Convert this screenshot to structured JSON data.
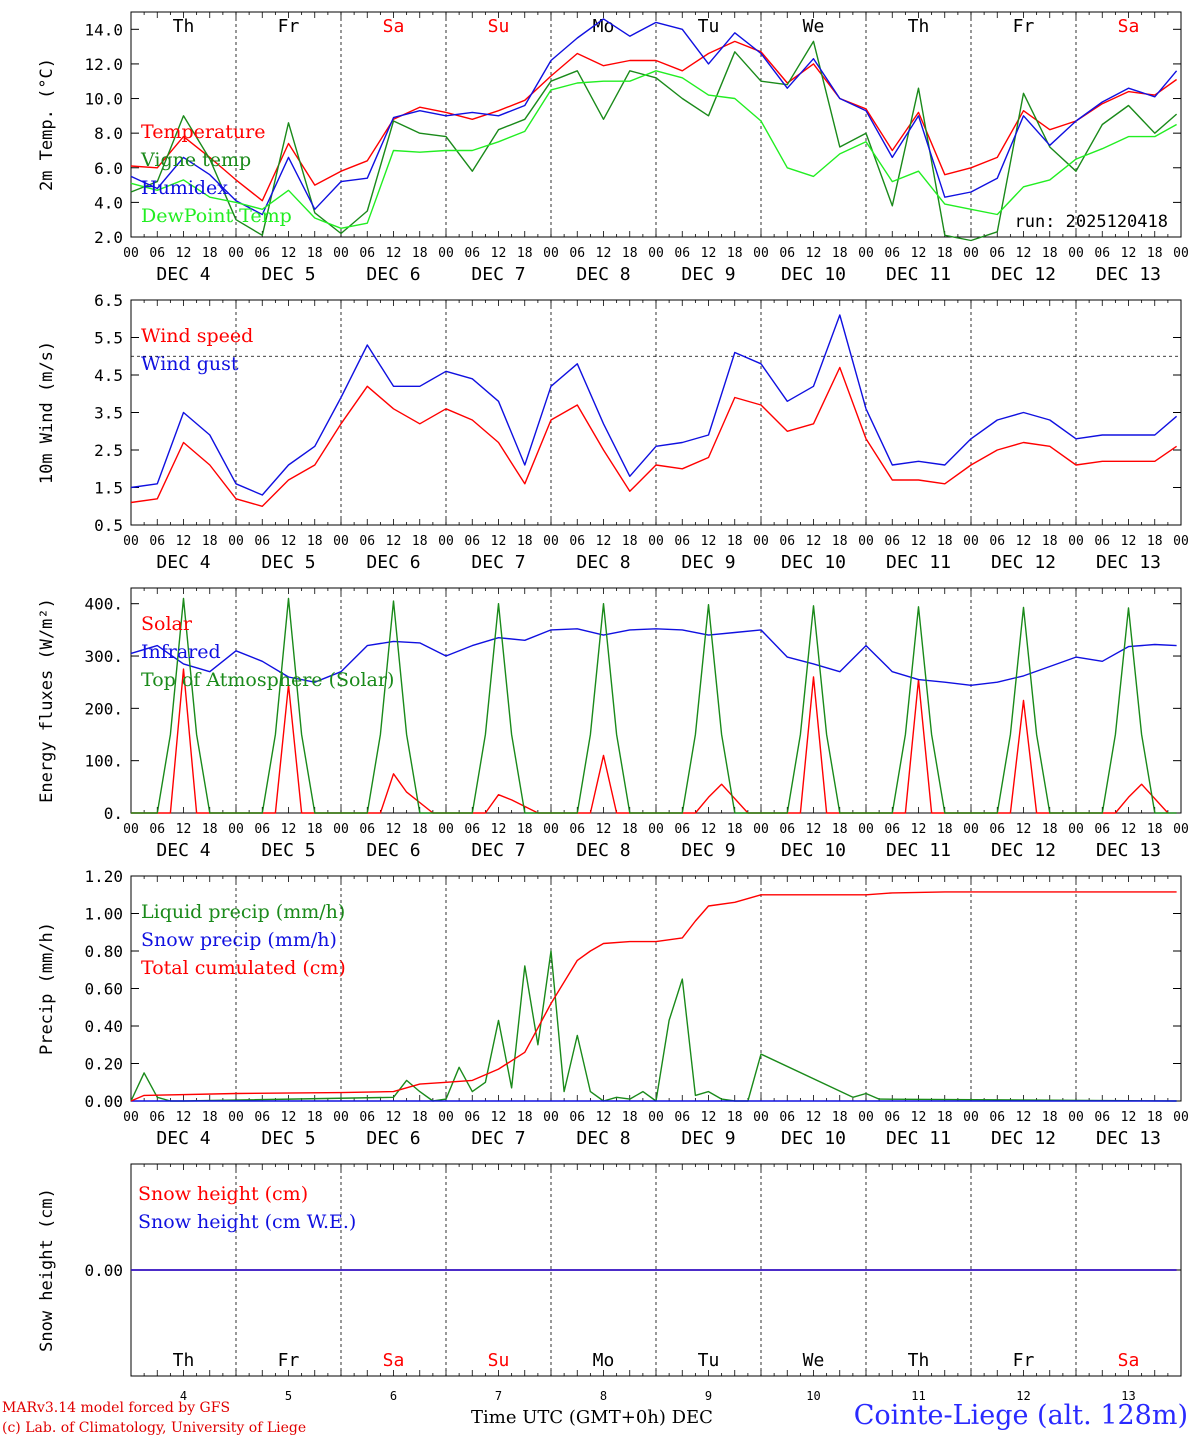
{
  "chart_data": [
    {
      "type": "line",
      "ylabel": "2m Temp. (°C)",
      "ylim": [
        2,
        15
      ],
      "yticks": [
        "2.0",
        "4.0",
        "6.0",
        "8.0",
        "10.0",
        "12.0",
        "14.0"
      ],
      "x_day_labels": [
        "DEC  4",
        "DEC  5",
        "DEC  6",
        "DEC  7",
        "DEC  8",
        "DEC  9",
        "DEC 10",
        "DEC 11",
        "DEC 12",
        "DEC 13"
      ],
      "x_hour_labels": [
        "00",
        "06",
        "12",
        "18"
      ],
      "weekday_labels": [
        "Th",
        "Fr",
        "Sa",
        "Su",
        "Mo",
        "Tu",
        "We",
        "Th",
        "Fr",
        "Sa"
      ],
      "weekend_days": [
        2,
        3,
        9
      ],
      "annotation": "run: 2025120418",
      "series": [
        {
          "name": "Temperature",
          "color": "#ff0000",
          "x": [
            0,
            6,
            12,
            18,
            24,
            30,
            36,
            42,
            48,
            54,
            60,
            66,
            72,
            78,
            84,
            90,
            96,
            102,
            108,
            114,
            120,
            126,
            132,
            138,
            144,
            150,
            156,
            162,
            168,
            174,
            180,
            186,
            192,
            198,
            204,
            210,
            216,
            222,
            228,
            234,
            239
          ],
          "values": [
            6.1,
            6.0,
            7.8,
            6.6,
            5.3,
            4.1,
            7.4,
            5.0,
            5.8,
            6.4,
            8.8,
            9.5,
            9.2,
            8.8,
            9.3,
            9.9,
            11.3,
            12.6,
            11.9,
            12.2,
            12.2,
            11.6,
            12.6,
            13.3,
            12.7,
            10.9,
            12.0,
            10.0,
            9.4,
            7.0,
            9.2,
            5.6,
            6.0,
            6.6,
            9.3,
            8.2,
            8.7,
            9.7,
            10.4,
            10.2,
            11.1
          ]
        },
        {
          "name": "Vigne temp",
          "color": "#1a8a1a",
          "x": [
            0,
            6,
            12,
            18,
            24,
            30,
            36,
            42,
            48,
            54,
            60,
            66,
            72,
            78,
            84,
            90,
            96,
            102,
            108,
            114,
            120,
            126,
            132,
            138,
            144,
            150,
            156,
            162,
            168,
            174,
            180,
            186,
            192,
            198,
            204,
            210,
            216,
            222,
            228,
            234,
            239
          ],
          "values": [
            4.6,
            5.2,
            9.0,
            6.5,
            3.0,
            2.1,
            8.6,
            3.4,
            2.2,
            3.5,
            8.7,
            8.0,
            7.8,
            5.8,
            8.2,
            8.8,
            11.0,
            11.6,
            8.8,
            11.6,
            11.2,
            10.0,
            9.0,
            12.7,
            11.0,
            10.8,
            13.3,
            7.2,
            8.0,
            3.8,
            10.6,
            2.1,
            1.8,
            2.3,
            10.3,
            7.2,
            5.8,
            8.5,
            9.6,
            8.0,
            9.1
          ]
        },
        {
          "name": "Humidex",
          "color": "#1010e0",
          "x": [
            0,
            6,
            12,
            18,
            24,
            30,
            36,
            42,
            48,
            54,
            60,
            66,
            72,
            78,
            84,
            90,
            96,
            102,
            108,
            114,
            120,
            126,
            132,
            138,
            144,
            150,
            156,
            162,
            168,
            174,
            180,
            186,
            192,
            198,
            204,
            210,
            216,
            222,
            228,
            234,
            239
          ],
          "values": [
            5.5,
            4.8,
            6.6,
            5.6,
            4.1,
            3.3,
            6.6,
            3.6,
            5.2,
            5.4,
            8.9,
            9.3,
            9.0,
            9.2,
            9.0,
            9.6,
            12.2,
            13.5,
            14.6,
            13.6,
            14.4,
            14.0,
            12.0,
            13.8,
            12.6,
            10.6,
            12.3,
            10.0,
            9.3,
            6.6,
            9.0,
            4.3,
            4.6,
            5.4,
            9.0,
            7.3,
            8.7,
            9.8,
            10.6,
            10.1,
            11.6
          ]
        },
        {
          "name": "DewPoint Temp",
          "color": "#22ee22",
          "x": [
            0,
            6,
            12,
            18,
            24,
            30,
            36,
            42,
            48,
            54,
            60,
            66,
            72,
            78,
            84,
            90,
            96,
            102,
            108,
            114,
            120,
            126,
            132,
            138,
            144,
            150,
            156,
            162,
            168,
            174,
            180,
            186,
            192,
            198,
            204,
            210,
            216,
            222,
            228,
            234,
            239
          ],
          "values": [
            5.1,
            4.7,
            5.3,
            4.3,
            4.0,
            3.6,
            4.7,
            3.1,
            2.5,
            2.8,
            7.0,
            6.9,
            7.0,
            7.0,
            7.5,
            8.1,
            10.5,
            10.9,
            11.0,
            11.0,
            11.6,
            11.2,
            10.2,
            10.0,
            8.7,
            6.0,
            5.5,
            6.8,
            7.5,
            5.2,
            5.8,
            3.9,
            3.6,
            3.3,
            4.9,
            5.3,
            6.5,
            7.1,
            7.8,
            7.8,
            8.5
          ]
        }
      ]
    },
    {
      "type": "line",
      "ylabel": "10m Wind (m/s)",
      "ylim": [
        0.5,
        6.5
      ],
      "yticks": [
        "0.5",
        "1.5",
        "2.5",
        "3.5",
        "4.5",
        "5.5",
        "6.5"
      ],
      "reference_line": 5.0,
      "series": [
        {
          "name": "Wind speed",
          "color": "#ff0000",
          "x": [
            0,
            6,
            12,
            18,
            24,
            30,
            36,
            42,
            48,
            54,
            60,
            66,
            72,
            78,
            84,
            90,
            96,
            102,
            108,
            114,
            120,
            126,
            132,
            138,
            144,
            150,
            156,
            162,
            168,
            174,
            180,
            186,
            192,
            198,
            204,
            210,
            216,
            222,
            228,
            234,
            239
          ],
          "values": [
            1.1,
            1.2,
            2.7,
            2.1,
            1.2,
            1.0,
            1.7,
            2.1,
            3.2,
            4.2,
            3.6,
            3.2,
            3.6,
            3.3,
            2.7,
            1.6,
            3.3,
            3.7,
            2.5,
            1.4,
            2.1,
            2.0,
            2.3,
            3.9,
            3.7,
            3.0,
            3.2,
            4.7,
            2.8,
            1.7,
            1.7,
            1.6,
            2.1,
            2.5,
            2.7,
            2.6,
            2.1,
            2.2,
            2.2,
            2.2,
            2.6
          ]
        },
        {
          "name": "Wind gust",
          "color": "#1010e0",
          "x": [
            0,
            6,
            12,
            18,
            24,
            30,
            36,
            42,
            48,
            54,
            60,
            66,
            72,
            78,
            84,
            90,
            96,
            102,
            108,
            114,
            120,
            126,
            132,
            138,
            144,
            150,
            156,
            162,
            168,
            174,
            180,
            186,
            192,
            198,
            204,
            210,
            216,
            222,
            228,
            234,
            239
          ],
          "values": [
            1.5,
            1.6,
            3.5,
            2.9,
            1.6,
            1.3,
            2.1,
            2.6,
            3.9,
            5.3,
            4.2,
            4.2,
            4.6,
            4.4,
            3.8,
            2.1,
            4.2,
            4.8,
            3.2,
            1.8,
            2.6,
            2.7,
            2.9,
            5.1,
            4.8,
            3.8,
            4.2,
            6.1,
            3.6,
            2.1,
            2.2,
            2.1,
            2.8,
            3.3,
            3.5,
            3.3,
            2.8,
            2.9,
            2.9,
            2.9,
            3.4
          ]
        }
      ]
    },
    {
      "type": "line",
      "ylabel": "Energy fluxes (W/m²)",
      "ylim": [
        0,
        430
      ],
      "yticks": [
        "0.",
        "100.",
        "200.",
        "300.",
        "400."
      ],
      "series": [
        {
          "name": "Solar",
          "color": "#ff0000",
          "x": [
            0,
            9,
            12,
            15,
            21,
            33,
            36,
            39,
            45,
            57,
            60,
            63,
            69,
            81,
            84,
            87,
            93,
            105,
            108,
            111,
            117,
            129,
            132,
            135,
            141,
            153,
            156,
            159,
            165,
            177,
            180,
            183,
            189,
            201,
            204,
            207,
            213,
            225,
            228,
            231,
            237
          ],
          "values": [
            0,
            0,
            275,
            0,
            0,
            0,
            245,
            0,
            0,
            0,
            75,
            40,
            0,
            0,
            35,
            25,
            0,
            0,
            110,
            0,
            0,
            0,
            30,
            55,
            0,
            0,
            260,
            0,
            0,
            0,
            255,
            0,
            0,
            0,
            215,
            0,
            0,
            0,
            30,
            55,
            0
          ]
        },
        {
          "name": "Infrared",
          "color": "#1010e0",
          "x": [
            0,
            6,
            12,
            18,
            24,
            30,
            36,
            42,
            48,
            54,
            60,
            66,
            72,
            78,
            84,
            90,
            96,
            102,
            108,
            114,
            120,
            126,
            132,
            138,
            144,
            150,
            156,
            162,
            168,
            174,
            180,
            186,
            192,
            198,
            204,
            210,
            216,
            222,
            228,
            234,
            239
          ],
          "values": [
            305,
            320,
            285,
            270,
            310,
            290,
            260,
            250,
            270,
            320,
            328,
            325,
            300,
            320,
            335,
            330,
            350,
            352,
            340,
            350,
            352,
            350,
            340,
            345,
            350,
            298,
            285,
            270,
            320,
            270,
            255,
            250,
            244,
            250,
            262,
            280,
            298,
            290,
            318,
            322,
            320
          ]
        },
        {
          "name": "Top of Atmosphere (Solar)",
          "color": "#1a8a1a",
          "x": [
            0,
            6,
            9,
            12,
            15,
            18,
            24,
            30,
            33,
            36,
            39,
            42,
            48,
            54,
            57,
            60,
            63,
            66,
            72,
            78,
            81,
            84,
            87,
            90,
            96,
            102,
            105,
            108,
            111,
            114,
            120,
            126,
            129,
            132,
            135,
            138,
            144,
            150,
            153,
            156,
            159,
            162,
            168,
            174,
            177,
            180,
            183,
            186,
            192,
            198,
            201,
            204,
            207,
            210,
            216,
            222,
            225,
            228,
            231,
            234,
            239
          ],
          "values": [
            0,
            0,
            150,
            410,
            150,
            0,
            0,
            0,
            150,
            410,
            150,
            0,
            0,
            0,
            150,
            405,
            150,
            0,
            0,
            0,
            150,
            400,
            150,
            0,
            0,
            0,
            150,
            400,
            150,
            0,
            0,
            0,
            150,
            398,
            150,
            0,
            0,
            0,
            150,
            396,
            150,
            0,
            0,
            0,
            150,
            394,
            150,
            0,
            0,
            0,
            150,
            393,
            150,
            0,
            0,
            0,
            150,
            392,
            150,
            0,
            0
          ]
        }
      ]
    },
    {
      "type": "line",
      "ylabel": "Precip (mm/h)",
      "ylim": [
        0,
        1.2
      ],
      "yticks": [
        "0.00",
        "0.20",
        "0.40",
        "0.60",
        "0.80",
        "1.00",
        "1.20"
      ],
      "series": [
        {
          "name": "Liquid precip (mm/h)",
          "color": "#1a8a1a",
          "x": [
            0,
            3,
            6,
            9,
            12,
            60,
            63,
            66,
            69,
            72,
            75,
            78,
            81,
            84,
            87,
            90,
            93,
            96,
            99,
            102,
            105,
            108,
            111,
            114,
            117,
            120,
            123,
            126,
            129,
            132,
            135,
            138,
            141,
            144,
            165,
            168,
            171,
            239
          ],
          "values": [
            0,
            0.15,
            0.02,
            0,
            0,
            0.02,
            0.11,
            0.05,
            0,
            0.01,
            0.18,
            0.05,
            0.1,
            0.43,
            0.07,
            0.72,
            0.3,
            0.8,
            0.05,
            0.35,
            0.05,
            0,
            0.02,
            0.01,
            0.05,
            0,
            0.43,
            0.65,
            0.03,
            0.05,
            0.01,
            0,
            0,
            0.25,
            0.02,
            0.04,
            0.01,
            0
          ]
        },
        {
          "name": "Snow precip (mm/h)",
          "color": "#1010e0",
          "x": [
            0,
            239
          ],
          "values": [
            0,
            0
          ]
        },
        {
          "name": "Total cumulated (cm)",
          "color": "#ff0000",
          "x": [
            0,
            3,
            24,
            48,
            60,
            66,
            72,
            78,
            84,
            90,
            96,
            102,
            105,
            108,
            114,
            120,
            126,
            129,
            132,
            138,
            144,
            168,
            174,
            186,
            210,
            239
          ],
          "values": [
            0,
            0.03,
            0.04,
            0.045,
            0.05,
            0.09,
            0.1,
            0.11,
            0.17,
            0.26,
            0.52,
            0.75,
            0.8,
            0.84,
            0.85,
            0.85,
            0.87,
            0.96,
            1.04,
            1.06,
            1.1,
            1.1,
            1.11,
            1.115,
            1.115,
            1.115
          ]
        }
      ]
    },
    {
      "type": "line",
      "ylabel": "Snow height (cm)",
      "yticks": [
        "0.00"
      ],
      "x_day_numbers": [
        "4",
        "5",
        "6",
        "7",
        "8",
        "9",
        "10",
        "11",
        "12",
        "13"
      ],
      "xlabel": "Time UTC (GMT+0h) DEC",
      "series": [
        {
          "name": "Snow height (cm)",
          "color": "#ff0000",
          "x": [
            0,
            239
          ],
          "values": [
            0,
            0
          ]
        },
        {
          "name": "Snow height (cm W.E.)",
          "color": "#1010e0",
          "x": [
            0,
            239
          ],
          "values": [
            0,
            0
          ]
        }
      ]
    }
  ],
  "footer": {
    "credit_line1": "MARv3.14 model forced by GFS",
    "credit_line2": "(c) Lab. of Climatology, University of Liege",
    "station": "Cointe-Liege (alt. 128m)",
    "xlabel": "Time UTC (GMT+0h) DEC"
  }
}
